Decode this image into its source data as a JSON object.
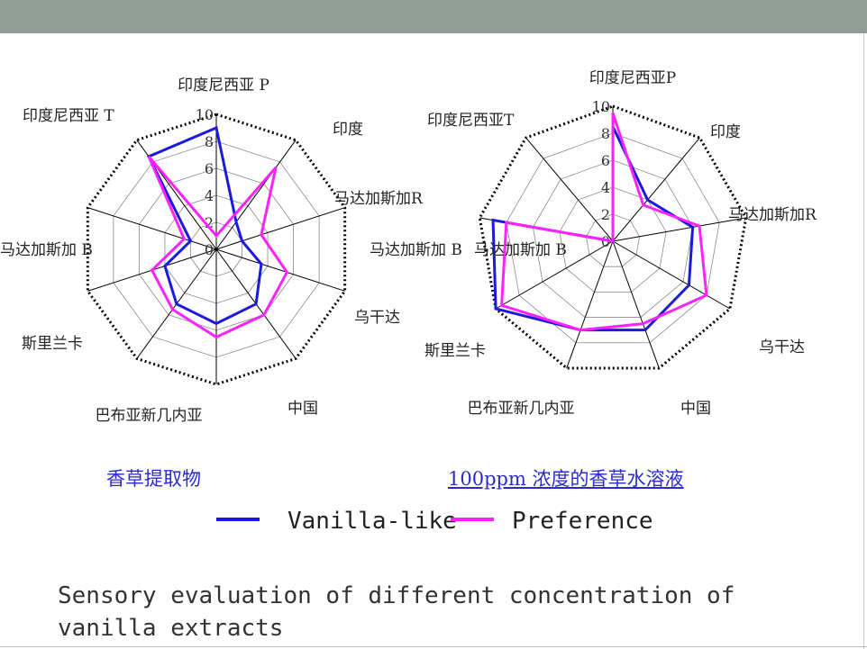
{
  "slide": {
    "title_line1": "Sensory evaluation of different concentration of",
    "title_line2": "vanilla extracts"
  },
  "legend": [
    {
      "label": "Vanilla-like",
      "color": "#1a1adb"
    },
    {
      "label": "Preference",
      "color": "#ff22ff"
    }
  ],
  "chart_data": [
    {
      "type": "radar",
      "caption": "香草提取物",
      "categories": [
        "印度尼西亚 P",
        "印度",
        "马达加斯加R",
        "马达加斯加 B",
        "乌干达",
        "中国",
        "巴布亚新几内亚",
        "斯里兰卡",
        "马达加斯加 B",
        "印度尼西亚 T"
      ],
      "category_labels": [
        "印度尼西亚 P",
        "印度",
        "马达加斯加R",
        "马达加斯加 B",
        "乌干达",
        "中国",
        "巴布亚新几内亚",
        "斯里兰卡",
        "马达加斯加 B",
        "印度尼西亚 T"
      ],
      "scale": {
        "min": 0,
        "max": 10,
        "ticks": [
          "0",
          "2",
          "4",
          "6",
          "8",
          "10"
        ]
      },
      "series": [
        {
          "name": "Vanilla-like",
          "color": "#1a1adb",
          "values": [
            9,
            2.5,
            2,
            3.5,
            5,
            5.5,
            5,
            4,
            2,
            8.5
          ]
        },
        {
          "name": "Preference",
          "color": "#ff22ff",
          "values": [
            1,
            7.5,
            3.5,
            5.5,
            6,
            6.5,
            5.5,
            5,
            2.5,
            8.5
          ]
        }
      ]
    },
    {
      "type": "radar",
      "caption": "100ppm  浓度的香草水溶液",
      "categories": [
        "印度尼西亚P",
        "印度",
        "马达加斯加R",
        "乌干达",
        "中国",
        "巴布亚新几内亚",
        "斯里兰卡",
        "马达加斯加 B",
        "印度尼西亚T"
      ],
      "category_labels": [
        "印度尼西亚P",
        "印度",
        "马达加斯加R",
        "乌干达",
        "中国",
        "巴布亚新几内亚",
        "斯里兰卡",
        "马达加斯加 B",
        "印度尼西亚T"
      ],
      "scale": {
        "min": 0,
        "max": 10,
        "ticks": [
          "0",
          "2",
          "4",
          "6",
          "8",
          "10"
        ]
      },
      "series": [
        {
          "name": "Vanilla-like",
          "color": "#1a1adb",
          "values": [
            8.5,
            4,
            6,
            6.5,
            7,
            7,
            10,
            9,
            0
          ]
        },
        {
          "name": "Preference",
          "color": "#ff22ff",
          "values": [
            9.5,
            3.5,
            6.5,
            8,
            6.5,
            7,
            9.5,
            8,
            0
          ]
        }
      ]
    }
  ]
}
